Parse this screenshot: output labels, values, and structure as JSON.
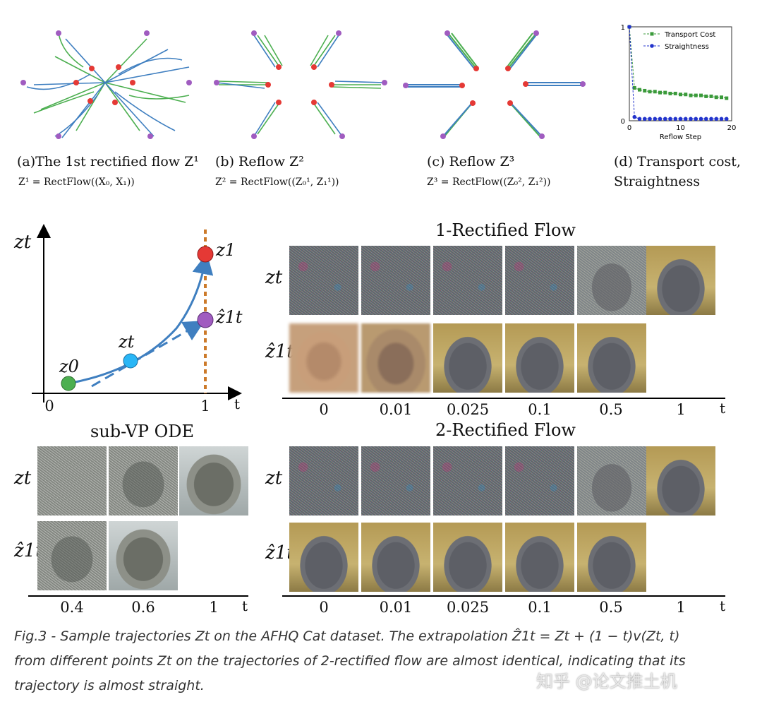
{
  "top_panels": [
    {
      "label": "(a)The 1st rectified flow Z¹",
      "formula": "Z¹ = RectFlow((X₀, X₁))"
    },
    {
      "label": "(b) Reflow Z²",
      "formula": "Z² = RectFlow((Z₀¹, Z₁¹))"
    },
    {
      "label": "(c) Reflow Z³",
      "formula": "Z³ = RectFlow((Z₀², Z₁²))"
    },
    {
      "label": "(d) Transport cost,",
      "label2": "Straightness"
    }
  ],
  "colors": {
    "blue": "#3f7fc0",
    "green": "#4caf50",
    "red": "#e53935",
    "purple": "#a05cc0",
    "orange": "#cc7a2a"
  },
  "chart_data": {
    "type": "line",
    "xlabel": "Reflow Step",
    "x_ticks": [
      "0",
      "10",
      "20"
    ],
    "y_ticks": [
      "0",
      "1"
    ],
    "xlim": [
      0,
      20
    ],
    "ylim": [
      0,
      1
    ],
    "legend_position": "top-right",
    "series": [
      {
        "name": "Transport Cost",
        "color": "#3a9a3a",
        "marker": "square",
        "style": "dashed",
        "x": [
          0,
          1,
          2,
          3,
          4,
          5,
          6,
          7,
          8,
          9,
          10,
          11,
          12,
          13,
          14,
          15,
          16,
          17,
          18,
          19
        ],
        "y": [
          1.0,
          0.35,
          0.33,
          0.32,
          0.31,
          0.31,
          0.3,
          0.3,
          0.29,
          0.29,
          0.28,
          0.28,
          0.27,
          0.27,
          0.27,
          0.26,
          0.26,
          0.25,
          0.25,
          0.24
        ]
      },
      {
        "name": "Straightness",
        "color": "#2233cc",
        "marker": "circle",
        "style": "dashed",
        "x": [
          0,
          1,
          2,
          3,
          4,
          5,
          6,
          7,
          8,
          9,
          10,
          11,
          12,
          13,
          14,
          15,
          16,
          17,
          18,
          19
        ],
        "y": [
          1.0,
          0.04,
          0.02,
          0.02,
          0.02,
          0.02,
          0.02,
          0.02,
          0.02,
          0.02,
          0.02,
          0.02,
          0.02,
          0.02,
          0.02,
          0.02,
          0.02,
          0.02,
          0.02,
          0.02
        ]
      }
    ]
  },
  "diagram": {
    "y_axis": "zt",
    "x_axis": "t",
    "tick0": "0",
    "tick1": "1",
    "z0": "z0",
    "zt": "zt",
    "z1": "z1",
    "zhat": "ẑ1t"
  },
  "subvp": {
    "title": "sub-VP ODE",
    "ticks": [
      "0.4",
      "0.6",
      "1"
    ],
    "axis": "t"
  },
  "flow1": {
    "title": "1-Rectified Flow",
    "ticks": [
      "0",
      "0.01",
      "0.025",
      "0.1",
      "0.5",
      "1"
    ],
    "axis": "t"
  },
  "flow2": {
    "title": "2-Rectified Flow",
    "ticks": [
      "0",
      "0.01",
      "0.025",
      "0.1",
      "0.5",
      "1"
    ],
    "axis": "t"
  },
  "row_labels": {
    "zt": "zt",
    "zhat": "ẑ1t"
  },
  "caption": {
    "line1": "Fig.3 - Sample trajectories Zt on the AFHQ Cat dataset. The extrapolation Ẑ1t = Zt + (1 − t)v(Zt, t)",
    "line2": "from different points Zt on the trajectories of 2-rectified flow are almost identical, indicating that its",
    "line3": "trajectory is almost straight."
  },
  "watermark": "知乎 @论文推土机"
}
